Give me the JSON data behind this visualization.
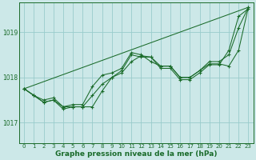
{
  "title": "Graphe pression niveau de la mer (hPa)",
  "bg_color": "#cce8e8",
  "grid_color": "#99cccc",
  "line_color": "#1a6b2a",
  "x_labels": [
    "0",
    "1",
    "2",
    "3",
    "4",
    "5",
    "6",
    "7",
    "8",
    "9",
    "10",
    "11",
    "12",
    "13",
    "14",
    "15",
    "16",
    "17",
    "18",
    "19",
    "20",
    "21",
    "22",
    "23"
  ],
  "ylim": [
    1016.55,
    1019.65
  ],
  "yticks": [
    1017,
    1018,
    1019
  ],
  "hours": [
    0,
    1,
    2,
    3,
    4,
    5,
    6,
    7,
    8,
    9,
    10,
    11,
    12,
    13,
    14,
    15,
    16,
    17,
    18,
    19,
    20,
    21,
    22,
    23
  ],
  "series1": [
    1017.75,
    1017.6,
    1017.45,
    1017.5,
    1017.3,
    1017.35,
    1017.35,
    1017.35,
    1017.7,
    1018.0,
    1018.1,
    1018.35,
    1018.48,
    1018.45,
    1018.2,
    1018.2,
    1017.95,
    1017.95,
    1018.1,
    1018.28,
    1018.28,
    1018.6,
    1019.35,
    1019.52
  ],
  "series2": [
    1017.75,
    1017.6,
    1017.45,
    1017.5,
    1017.35,
    1017.4,
    1017.4,
    1017.8,
    1018.05,
    1018.1,
    1018.2,
    1018.55,
    1018.5,
    1018.35,
    1018.25,
    1018.25,
    1018.0,
    1018.0,
    1018.15,
    1018.3,
    1018.3,
    1018.25,
    1018.6,
    1019.55
  ],
  "series3": [
    1017.75,
    1017.6,
    1017.5,
    1017.55,
    1017.35,
    1017.35,
    1017.35,
    1017.6,
    1017.85,
    1018.0,
    1018.15,
    1018.5,
    1018.45,
    1018.45,
    1018.25,
    1018.25,
    1018.0,
    1018.0,
    1018.15,
    1018.35,
    1018.35,
    1018.5,
    1019.1,
    1019.55
  ],
  "series_straight": [
    [
      0,
      1017.75
    ],
    [
      23,
      1019.55
    ]
  ],
  "ylabel_fontsize": 5.5,
  "xlabel_fontsize": 6.5,
  "tick_fontsize": 5.0
}
